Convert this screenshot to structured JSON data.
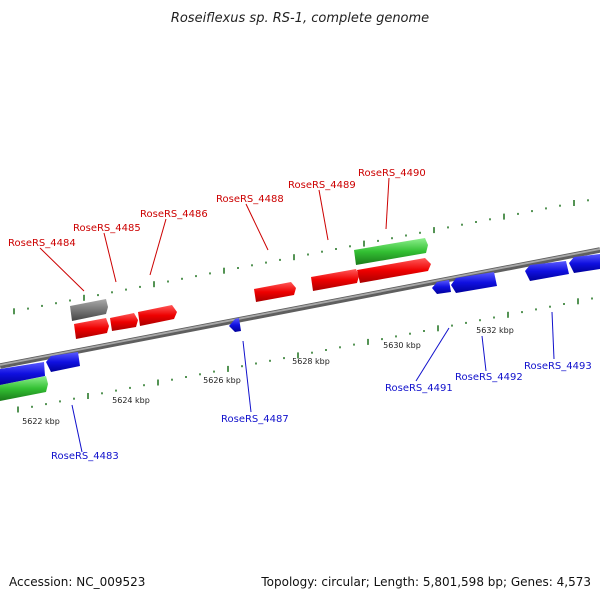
{
  "title": "Roseiflexus sp. RS-1, complete genome",
  "footer": {
    "accession": "Accession: NC_009523",
    "summary": "Topology: circular; Length: 5,801,598 bp; Genes: 4,573"
  },
  "colors": {
    "forward": "#e00000",
    "reverse": "#1010d8",
    "rna": "#33bb33",
    "other": "#777777",
    "backbone": "#8a8a8a",
    "tick": "#2a7a2a",
    "forward_label": "#cc0000",
    "reverse_label": "#1010cc"
  },
  "ruler": [
    "5622 kbp",
    "5624 kbp",
    "5626 kbp",
    "5628 kbp",
    "5630 kbp",
    "5632 kbp"
  ],
  "forward_genes": [
    "RoseRS_4484",
    "RoseRS_4485",
    "RoseRS_4486",
    "RoseRS_4488",
    "RoseRS_4489",
    "RoseRS_4490"
  ],
  "reverse_genes": [
    "RoseRS_4483",
    "RoseRS_4487",
    "RoseRS_4491",
    "RoseRS_4492",
    "RoseRS_4493"
  ]
}
